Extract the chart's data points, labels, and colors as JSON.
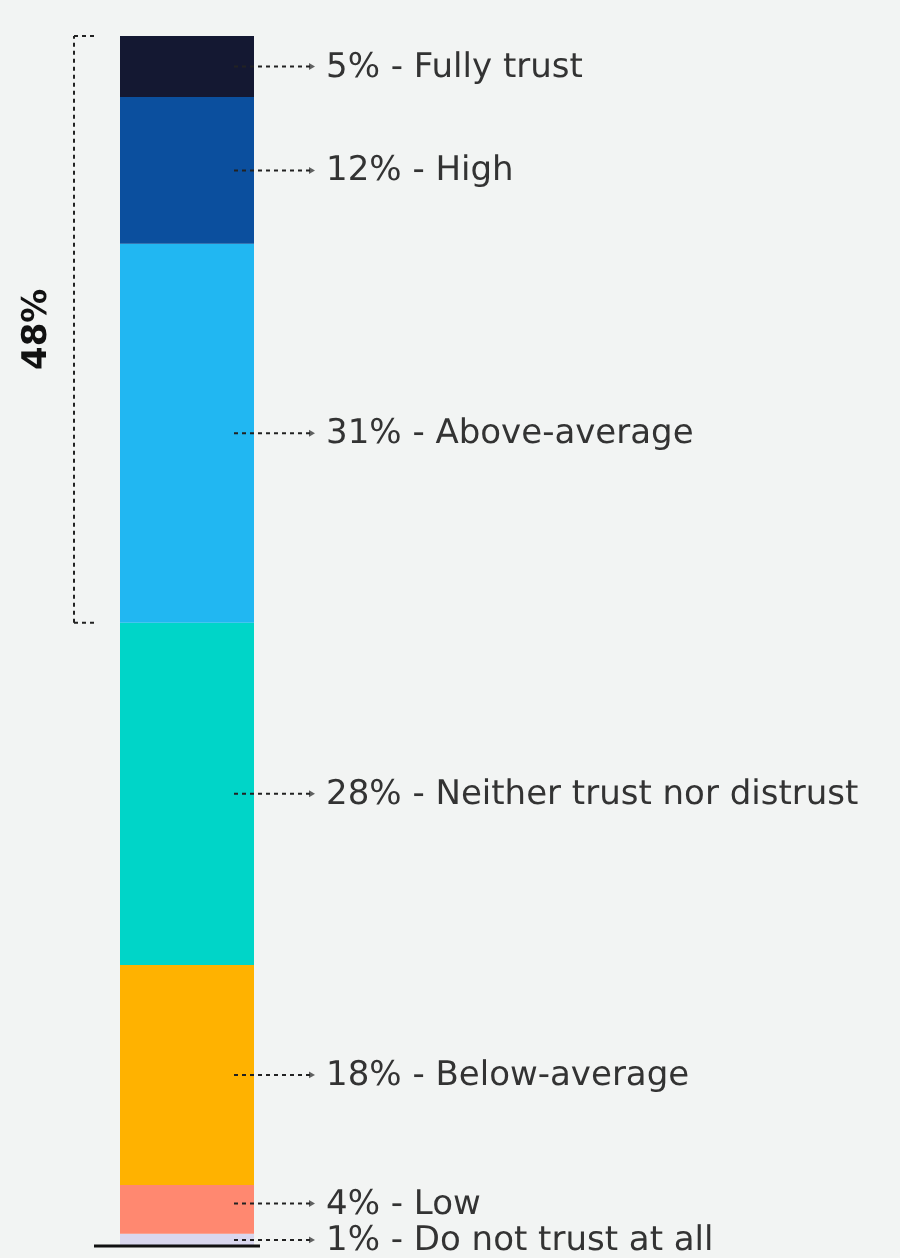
{
  "chart_data": {
    "type": "bar",
    "stacked": true,
    "categories": [
      null
    ],
    "annotations": [
      "48%"
    ],
    "series": [
      {
        "color": "#d9d7ee",
        "values": [
          1
        ],
        "value_labels": [
          "1% - Do not trust at all"
        ]
      },
      {
        "color": "#ff8870",
        "values": [
          4
        ],
        "value_labels": [
          "4% - Low"
        ]
      },
      {
        "color": "#ffb200",
        "values": [
          18
        ],
        "value_labels": [
          "18% - Below-average"
        ]
      },
      {
        "color": "#00d5c8",
        "values": [
          28
        ],
        "value_labels": [
          "28% - Neither trust nor distrust"
        ]
      },
      {
        "color": "#21b7f2",
        "values": [
          31
        ],
        "value_labels": [
          "31% - Above-average"
        ]
      },
      {
        "color": "#0b4f9e",
        "values": [
          12
        ],
        "value_labels": [
          "12% - High"
        ]
      },
      {
        "color": "#141832",
        "values": [
          5
        ],
        "value_labels": [
          "5% - Fully trust"
        ]
      }
    ]
  }
}
